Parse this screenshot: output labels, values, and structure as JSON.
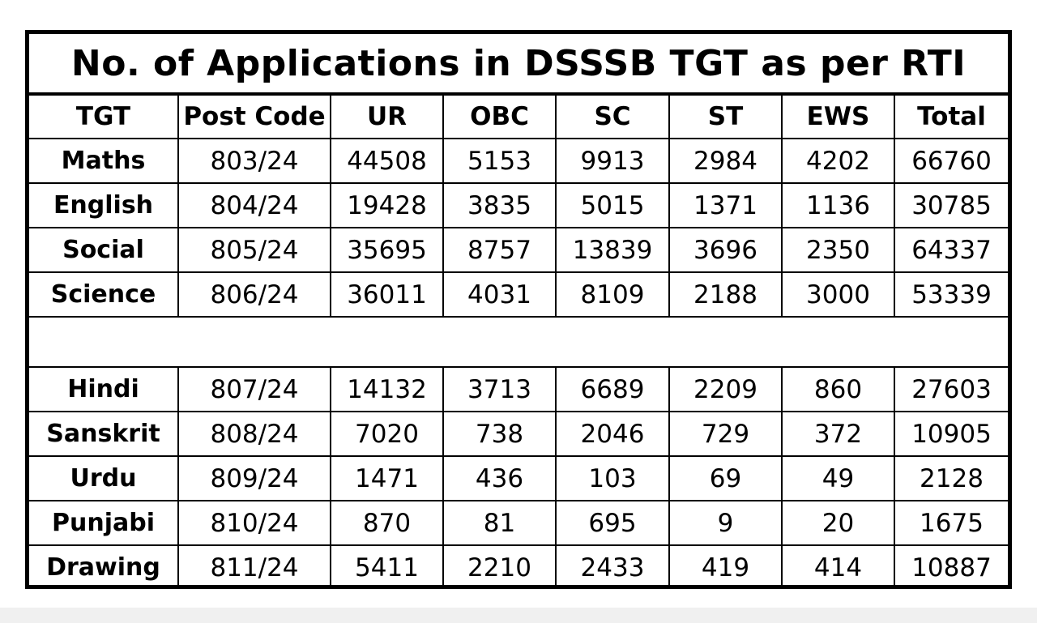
{
  "title": "No. of Applications in DSSSB TGT as per RTI",
  "columns": [
    "TGT",
    "Post Code",
    "UR",
    "OBC",
    "SC",
    "ST",
    "EWS",
    "Total"
  ],
  "rows_group1": [
    {
      "subject": "Maths",
      "post_code": "803/24",
      "ur": "44508",
      "obc": "5153",
      "sc": "9913",
      "st": "2984",
      "ews": "4202",
      "total": "66760"
    },
    {
      "subject": "English",
      "post_code": "804/24",
      "ur": "19428",
      "obc": "3835",
      "sc": "5015",
      "st": "1371",
      "ews": "1136",
      "total": "30785"
    },
    {
      "subject": "Social",
      "post_code": "805/24",
      "ur": "35695",
      "obc": "8757",
      "sc": "13839",
      "st": "3696",
      "ews": "2350",
      "total": "64337"
    },
    {
      "subject": "Science",
      "post_code": "806/24",
      "ur": "36011",
      "obc": "4031",
      "sc": "8109",
      "st": "2188",
      "ews": "3000",
      "total": "53339"
    }
  ],
  "rows_group2": [
    {
      "subject": "Hindi",
      "post_code": "807/24",
      "ur": "14132",
      "obc": "3713",
      "sc": "6689",
      "st": "2209",
      "ews": "860",
      "total": "27603"
    },
    {
      "subject": "Sanskrit",
      "post_code": "808/24",
      "ur": "7020",
      "obc": "738",
      "sc": "2046",
      "st": "729",
      "ews": "372",
      "total": "10905"
    },
    {
      "subject": "Urdu",
      "post_code": "809/24",
      "ur": "1471",
      "obc": "436",
      "sc": "103",
      "st": "69",
      "ews": "49",
      "total": "2128"
    },
    {
      "subject": "Punjabi",
      "post_code": "810/24",
      "ur": "870",
      "obc": "81",
      "sc": "695",
      "st": "9",
      "ews": "20",
      "total": "1675"
    },
    {
      "subject": "Drawing",
      "post_code": "811/24",
      "ur": "5411",
      "obc": "2210",
      "sc": "2433",
      "st": "419",
      "ews": "414",
      "total": "10887"
    }
  ]
}
